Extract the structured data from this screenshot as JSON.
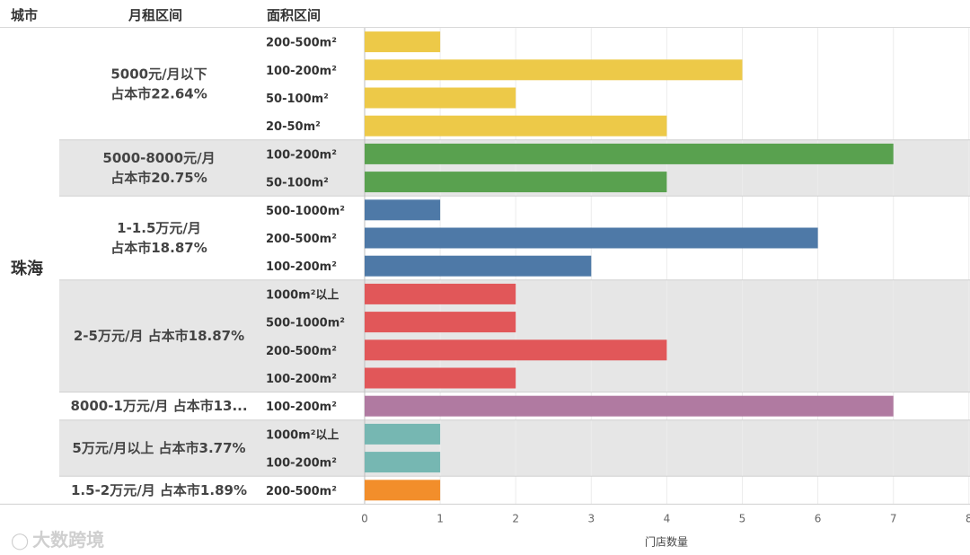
{
  "headers": {
    "city": "城市",
    "rent_range": "月租区间",
    "area_range": "面积区间"
  },
  "city": "珠海",
  "watermark": {
    "text": "大数跨境",
    "icon": "camera-logo-icon"
  },
  "chart_data": {
    "type": "bar",
    "orientation": "horizontal",
    "xlabel": "门店数量",
    "xlim": [
      0,
      8
    ],
    "x_ticks": [
      0,
      1,
      2,
      3,
      4,
      5,
      6,
      7,
      8
    ],
    "grid": true,
    "groups": [
      {
        "label": [
          "5000元/月以下",
          "占本市22.64%"
        ],
        "color": "#edc948",
        "shaded": false,
        "bars": [
          {
            "area": "200-500m²",
            "value": 1
          },
          {
            "area": "100-200m²",
            "value": 5
          },
          {
            "area": "50-100m²",
            "value": 2
          },
          {
            "area": "20-50m²",
            "value": 4
          }
        ]
      },
      {
        "label": [
          "5000-8000元/月",
          "占本市20.75%"
        ],
        "color": "#59a14f",
        "shaded": true,
        "bars": [
          {
            "area": "100-200m²",
            "value": 7
          },
          {
            "area": "50-100m²",
            "value": 4
          }
        ]
      },
      {
        "label": [
          "1-1.5万元/月",
          "占本市18.87%"
        ],
        "color": "#4e79a7",
        "shaded": false,
        "bars": [
          {
            "area": "500-1000m²",
            "value": 1
          },
          {
            "area": "200-500m²",
            "value": 6
          },
          {
            "area": "100-200m²",
            "value": 3
          }
        ]
      },
      {
        "label": [
          "2-5万元/月  占本市18.87%"
        ],
        "color": "#e15759",
        "shaded": true,
        "bars": [
          {
            "area": "1000m²以上",
            "value": 2
          },
          {
            "area": "500-1000m²",
            "value": 2
          },
          {
            "area": "200-500m²",
            "value": 4
          },
          {
            "area": "100-200m²",
            "value": 2
          }
        ]
      },
      {
        "label": [
          "8000-1万元/月  占本市13..."
        ],
        "color": "#b07aa1",
        "shaded": false,
        "bars": [
          {
            "area": "100-200m²",
            "value": 7
          }
        ]
      },
      {
        "label": [
          "5万元/月以上  占本市3.77%"
        ],
        "color": "#76b7b2",
        "shaded": true,
        "bars": [
          {
            "area": "1000m²以上",
            "value": 1
          },
          {
            "area": "100-200m²",
            "value": 1
          }
        ]
      },
      {
        "label": [
          "1.5-2万元/月  占本市1.89%"
        ],
        "color": "#f28e2b",
        "shaded": false,
        "bars": [
          {
            "area": "200-500m²",
            "value": 1
          }
        ]
      }
    ]
  }
}
